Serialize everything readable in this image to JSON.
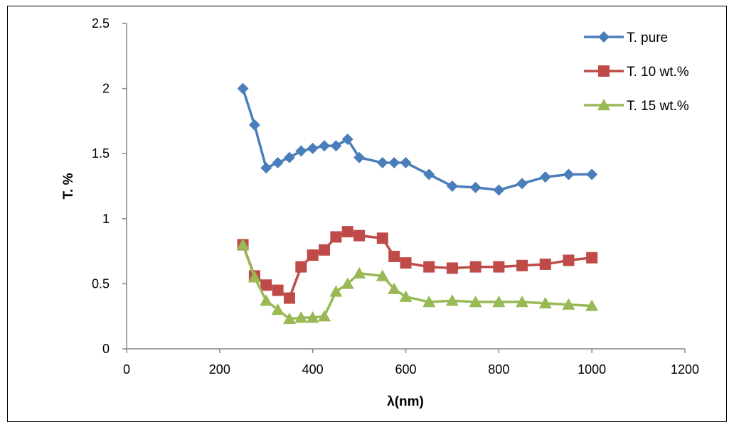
{
  "chart_data": {
    "type": "line",
    "title": "",
    "xlabel": "λ(nm)",
    "ylabel": "T. %",
    "xlim": [
      0,
      1200
    ],
    "ylim": [
      0,
      2.5
    ],
    "x_ticks": [
      "0",
      "200",
      "400",
      "600",
      "800",
      "1000",
      "1200"
    ],
    "y_ticks": [
      "0",
      "0.5",
      "1",
      "1.5",
      "2",
      "2.5"
    ],
    "grid": false,
    "legend_position": "top-right",
    "series": [
      {
        "name": "T. pure",
        "color": "#4A7EBB",
        "marker": "diamond",
        "x": [
          250,
          275,
          300,
          325,
          350,
          375,
          400,
          425,
          450,
          475,
          500,
          550,
          575,
          600,
          650,
          700,
          750,
          800,
          850,
          900,
          950,
          1000
        ],
        "y": [
          2.0,
          1.72,
          1.39,
          1.43,
          1.47,
          1.52,
          1.54,
          1.56,
          1.56,
          1.61,
          1.47,
          1.43,
          1.43,
          1.43,
          1.34,
          1.25,
          1.24,
          1.22,
          1.27,
          1.32,
          1.34,
          1.34
        ]
      },
      {
        "name": "T. 10 wt.%",
        "color": "#BE4B48",
        "marker": "square",
        "x": [
          250,
          275,
          300,
          325,
          350,
          375,
          400,
          425,
          450,
          475,
          500,
          550,
          575,
          600,
          650,
          700,
          750,
          800,
          850,
          900,
          950,
          1000
        ],
        "y": [
          0.8,
          0.56,
          0.49,
          0.45,
          0.39,
          0.63,
          0.72,
          0.76,
          0.86,
          0.9,
          0.87,
          0.85,
          0.71,
          0.66,
          0.63,
          0.62,
          0.63,
          0.63,
          0.64,
          0.65,
          0.68,
          0.7
        ]
      },
      {
        "name": "T. 15 wt.%",
        "color": "#98B954",
        "marker": "triangle",
        "x": [
          250,
          275,
          300,
          325,
          350,
          375,
          400,
          425,
          450,
          475,
          500,
          550,
          575,
          600,
          650,
          700,
          750,
          800,
          850,
          900,
          950,
          1000
        ],
        "y": [
          0.8,
          0.55,
          0.37,
          0.3,
          0.23,
          0.24,
          0.24,
          0.25,
          0.44,
          0.5,
          0.58,
          0.56,
          0.46,
          0.4,
          0.36,
          0.37,
          0.36,
          0.36,
          0.36,
          0.35,
          0.34,
          0.33
        ]
      }
    ]
  }
}
